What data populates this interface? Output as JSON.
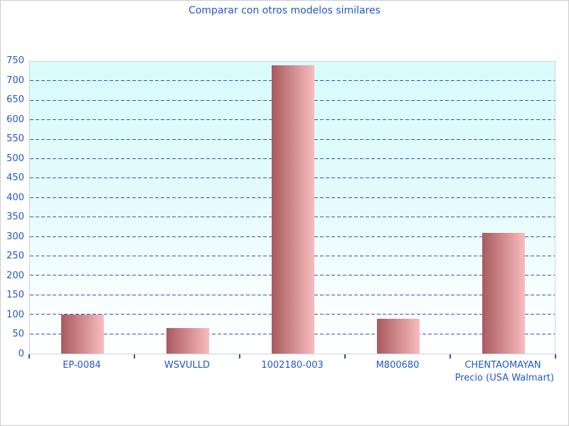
{
  "chart_data": {
    "type": "bar",
    "title": "Comparar con otros modelos similares",
    "categories": [
      "EP-0084",
      "WSVULLD",
      "1002180-003",
      "M800680",
      "CHENTAOMAYAN"
    ],
    "values": [
      100,
      65,
      740,
      90,
      310
    ],
    "xlabel": "Precio (USA Walmart)",
    "ylabel": "",
    "ylim": [
      0,
      750
    ],
    "yticks": [
      0,
      50,
      100,
      150,
      200,
      250,
      300,
      350,
      400,
      450,
      500,
      550,
      600,
      650,
      700,
      750
    ],
    "grid": true,
    "legend": false,
    "colors": {
      "text": "#2257cd",
      "gridline": "#3353be",
      "bar_gradient_start": "#a85a5e",
      "bar_gradient_end": "#f9bcbe",
      "plot_bg_top": "#d8fbfc",
      "plot_bg_bottom": "#ffffff",
      "axis_border": "#c9d6d6",
      "frame_border": "#cccccc"
    }
  }
}
